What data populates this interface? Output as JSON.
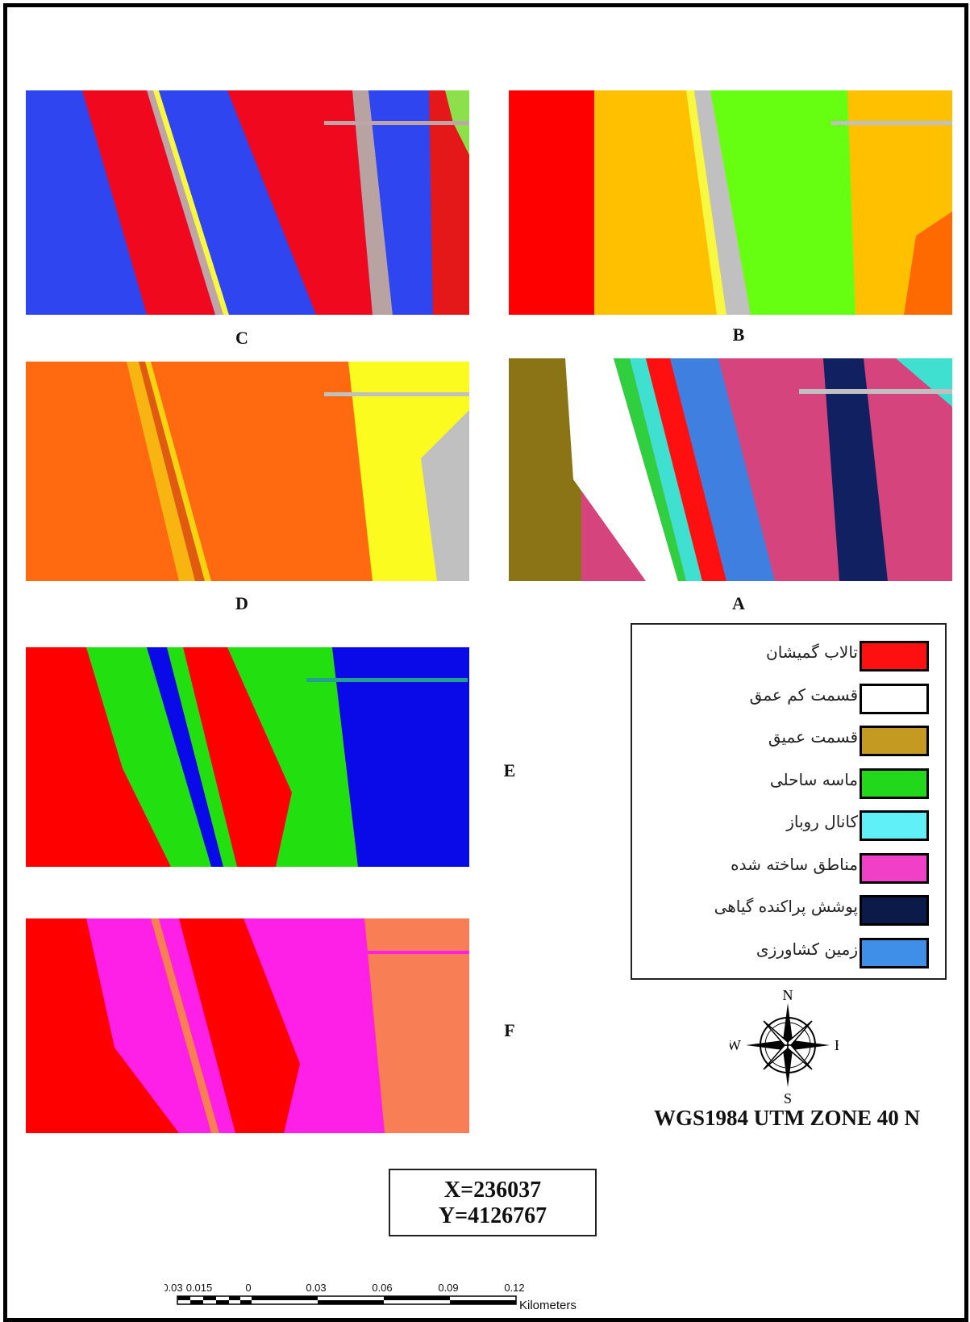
{
  "panels": [
    {
      "id": "C",
      "label": "C",
      "palette": [
        "#2f45f0",
        "#f0081f",
        "#bfa6a6",
        "#f0081f",
        "#2f45f0",
        "#f0081f",
        "#b8a2a2",
        "#2f45f0",
        "#8ce04c"
      ]
    },
    {
      "id": "B",
      "label": "B",
      "palette": [
        "#ff0000",
        "#ffc000",
        "#f8f840",
        "#c0c0c0",
        "#66ff11",
        "#ffc000",
        "#ff6a00"
      ]
    },
    {
      "id": "D",
      "label": "D",
      "palette": [
        "#ff6a10",
        "#f8b410",
        "#ff6a10",
        "#ff6a10",
        "#fbfb20",
        "#c0c0c0"
      ]
    },
    {
      "id": "A",
      "label": "A",
      "palette": [
        "#8b7416",
        "#ffffff",
        "#2fcf40",
        "#ff1010",
        "#3f7fe0",
        "#d6447e",
        "#102060",
        "#3fe0d0"
      ]
    },
    {
      "id": "E",
      "label": "E",
      "palette": [
        "#ff0000",
        "#22e010",
        "#0a0ae8",
        "#ff0000",
        "#22e010",
        "#0a0ae8"
      ]
    },
    {
      "id": "F",
      "label": "F",
      "palette": [
        "#ff0000",
        "#ff20e8",
        "#f87f55",
        "#ff0000",
        "#ff20e8",
        "#f87f55"
      ]
    }
  ],
  "legend": {
    "items": [
      {
        "label": "تالاب گمیشان",
        "color": "#ff1010"
      },
      {
        "label": "قسمت کم عمق",
        "color": "#ffffff"
      },
      {
        "label": "قسمت عمیق",
        "color": "#c49a20"
      },
      {
        "label": "ماسه ساحلی",
        "color": "#22d81a"
      },
      {
        "label": "کانال روباز",
        "color": "#60f0f8"
      },
      {
        "label": "مناطق ساخته شده",
        "color": "#f040c8"
      },
      {
        "label": "پوشش پراکنده گیاهی",
        "color": "#0c1a4a"
      },
      {
        "label": "زمین کشاورزی",
        "color": "#3f8fe8"
      }
    ]
  },
  "compass": {
    "n": "N",
    "s": "S",
    "e": "E",
    "w": "W"
  },
  "projection": "WGS1984 UTM ZONE  40 N",
  "coordinates": {
    "x": "X=236037",
    "y": "Y=4126767"
  },
  "scalebar": {
    "ticks": [
      "0.03",
      "0.015",
      "0",
      "0.03",
      "0.06",
      "0.09",
      "0.12"
    ],
    "unit": "Kilometers"
  }
}
